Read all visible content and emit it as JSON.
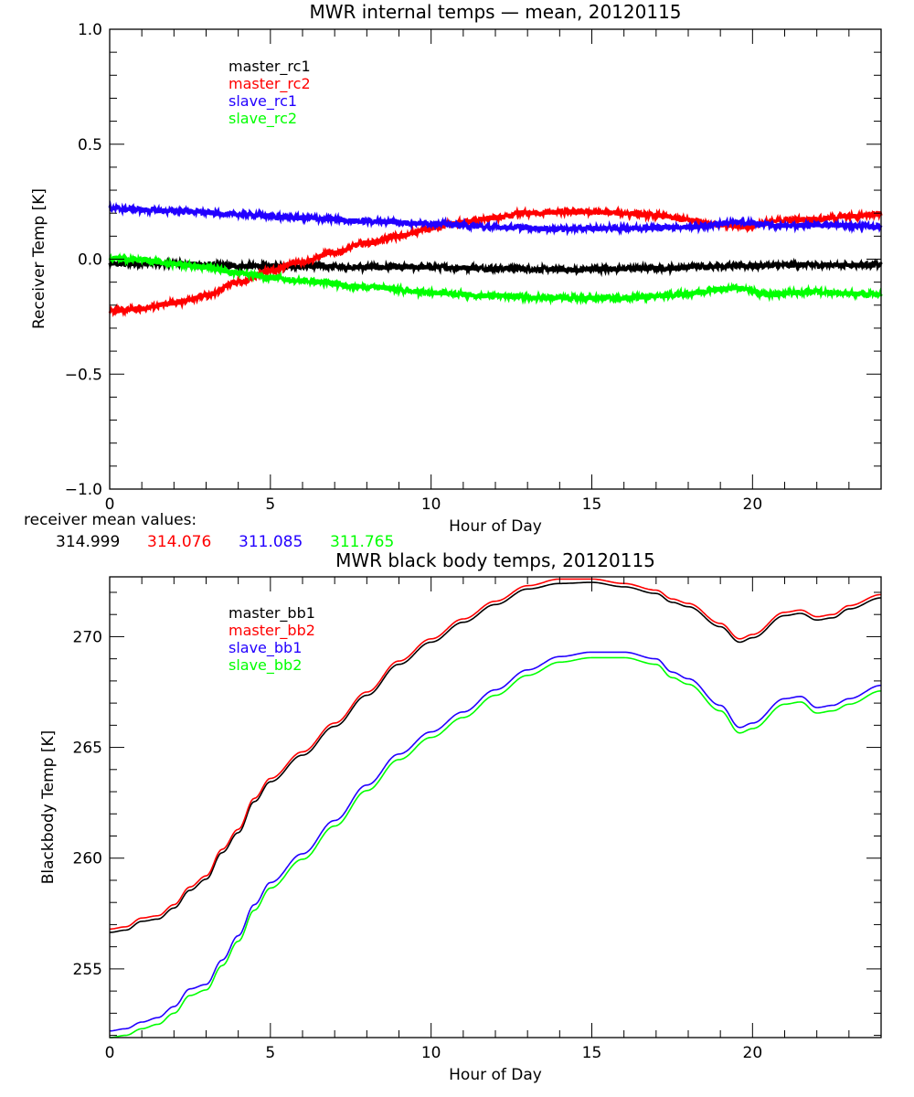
{
  "chart_data": [
    {
      "type": "line",
      "title": "MWR internal temps — mean, 20120115",
      "xlabel": "Hour of Day",
      "ylabel": "Receiver Temp [K]",
      "xlim": [
        0,
        24
      ],
      "ylim": [
        -1.0,
        1.0
      ],
      "xticks": [
        0,
        5,
        10,
        15,
        20
      ],
      "xtick_labels": [
        "0",
        "5",
        "10",
        "15",
        "20"
      ],
      "x_minor_step": 1,
      "yticks": [
        -1.0,
        -0.5,
        0.0,
        0.5,
        1.0
      ],
      "ytick_labels": [
        "−1.0",
        "−0.5",
        "0.0",
        "0.5",
        "1.0"
      ],
      "y_minor_step": 0.1,
      "grid": false,
      "legend_position": "top-left",
      "noisy": true,
      "series": [
        {
          "name": "master_rc1",
          "color": "#000000",
          "x": [
            0,
            2,
            4,
            6,
            8,
            10,
            12,
            14,
            14.5,
            15,
            17,
            19,
            20,
            22,
            24
          ],
          "y": [
            -0.02,
            -0.02,
            -0.03,
            -0.03,
            -0.035,
            -0.035,
            -0.04,
            -0.045,
            -0.048,
            -0.042,
            -0.04,
            -0.03,
            -0.028,
            -0.025,
            -0.025
          ]
        },
        {
          "name": "master_rc2",
          "color": "#ff0000",
          "x": [
            0,
            1,
            2,
            3,
            4,
            5,
            6,
            7,
            8,
            9,
            10,
            11,
            12,
            13,
            14,
            15,
            16,
            17,
            18,
            19,
            19.7,
            20.5,
            21,
            22,
            23,
            24
          ],
          "y": [
            -0.225,
            -0.215,
            -0.19,
            -0.16,
            -0.1,
            -0.05,
            -0.01,
            0.03,
            0.07,
            0.1,
            0.135,
            0.16,
            0.18,
            0.2,
            0.205,
            0.205,
            0.2,
            0.19,
            0.17,
            0.15,
            0.14,
            0.16,
            0.17,
            0.175,
            0.185,
            0.2
          ]
        },
        {
          "name": "slave_rc1",
          "color": "#2200ff",
          "x": [
            0,
            2,
            4,
            6,
            8,
            10,
            12,
            14,
            16,
            18,
            19.5,
            21,
            22,
            24
          ],
          "y": [
            0.22,
            0.21,
            0.195,
            0.18,
            0.165,
            0.155,
            0.14,
            0.132,
            0.135,
            0.14,
            0.16,
            0.145,
            0.15,
            0.142
          ]
        },
        {
          "name": "slave_rc2",
          "color": "#00ff00",
          "x": [
            0,
            1,
            2,
            3,
            4,
            5,
            6,
            8,
            10,
            12,
            14,
            16,
            17,
            18,
            19,
            19.5,
            20.5,
            21.5,
            22,
            23,
            24
          ],
          "y": [
            0.005,
            -0.005,
            -0.02,
            -0.035,
            -0.06,
            -0.08,
            -0.095,
            -0.12,
            -0.145,
            -0.16,
            -0.17,
            -0.17,
            -0.16,
            -0.15,
            -0.13,
            -0.125,
            -0.155,
            -0.145,
            -0.14,
            -0.15,
            -0.155
          ]
        }
      ]
    },
    {
      "type": "line",
      "title": "MWR black body temps, 20120115",
      "xlabel": "Hour of Day",
      "ylabel": "Blackbody Temp [K]",
      "xlim": [
        0,
        24
      ],
      "ylim": [
        251.9,
        272.7
      ],
      "xticks": [
        0,
        5,
        10,
        15,
        20
      ],
      "xtick_labels": [
        "0",
        "5",
        "10",
        "15",
        "20"
      ],
      "x_minor_step": 1,
      "yticks": [
        255,
        260,
        265,
        270
      ],
      "ytick_labels": [
        "255",
        "260",
        "265",
        "270"
      ],
      "y_minor_step": 1,
      "grid": false,
      "legend_position": "top-left",
      "noisy": false,
      "series": [
        {
          "name": "master_bb1",
          "color": "#000000",
          "x": [
            0,
            0.5,
            1,
            1.5,
            2,
            2.5,
            3,
            3.5,
            4,
            4.5,
            5,
            6,
            7,
            8,
            9,
            10,
            11,
            12,
            13,
            14,
            15,
            16,
            17,
            17.5,
            18,
            19,
            19.6,
            20,
            21,
            21.5,
            22,
            22.5,
            23,
            24
          ],
          "y": [
            256.65,
            256.75,
            257.15,
            257.25,
            257.75,
            258.55,
            259.05,
            260.25,
            261.15,
            262.55,
            263.45,
            264.65,
            265.95,
            267.35,
            268.75,
            269.75,
            270.65,
            271.45,
            272.15,
            272.4,
            272.45,
            272.25,
            271.95,
            271.55,
            271.35,
            270.45,
            269.75,
            269.95,
            270.95,
            271.05,
            270.75,
            270.85,
            271.25,
            271.75
          ]
        },
        {
          "name": "master_bb2",
          "color": "#ff0000",
          "x": [
            0,
            0.5,
            1,
            1.5,
            2,
            2.5,
            3,
            3.5,
            4,
            4.5,
            5,
            6,
            7,
            8,
            9,
            10,
            11,
            12,
            13,
            14,
            15,
            16,
            17,
            17.5,
            18,
            19,
            19.6,
            20,
            21,
            21.5,
            22,
            22.5,
            23,
            24
          ],
          "y": [
            256.8,
            256.9,
            257.3,
            257.4,
            257.9,
            258.7,
            259.2,
            260.4,
            261.3,
            262.7,
            263.6,
            264.8,
            266.1,
            267.5,
            268.9,
            269.9,
            270.8,
            271.6,
            272.3,
            272.6,
            272.6,
            272.4,
            272.1,
            271.7,
            271.5,
            270.6,
            269.9,
            270.1,
            271.1,
            271.2,
            270.9,
            271.0,
            271.4,
            271.9
          ]
        },
        {
          "name": "slave_bb1",
          "color": "#2200ff",
          "x": [
            0,
            0.5,
            1,
            1.5,
            2,
            2.5,
            3,
            3.5,
            4,
            4.5,
            5,
            6,
            7,
            8,
            9,
            10,
            11,
            12,
            13,
            14,
            15,
            16,
            17,
            17.5,
            18,
            19,
            19.6,
            20,
            21,
            21.5,
            22,
            22.5,
            23,
            24
          ],
          "y": [
            252.2,
            252.3,
            252.6,
            252.8,
            253.3,
            254.1,
            254.3,
            255.4,
            256.5,
            257.9,
            258.9,
            260.2,
            261.7,
            263.3,
            264.7,
            265.7,
            266.6,
            267.6,
            268.5,
            269.1,
            269.3,
            269.3,
            269.0,
            268.4,
            268.1,
            266.9,
            265.9,
            266.1,
            267.2,
            267.3,
            266.8,
            266.9,
            267.2,
            267.8
          ]
        },
        {
          "name": "slave_bb2",
          "color": "#00ff00",
          "x": [
            0,
            0.5,
            1,
            1.5,
            2,
            2.5,
            3,
            3.5,
            4,
            4.5,
            5,
            6,
            7,
            8,
            9,
            10,
            11,
            12,
            13,
            14,
            15,
            16,
            17,
            17.5,
            18,
            19,
            19.6,
            20,
            21,
            21.5,
            22,
            22.5,
            23,
            24
          ],
          "y": [
            251.9,
            252.0,
            252.3,
            252.5,
            253.0,
            253.8,
            254.05,
            255.15,
            256.25,
            257.65,
            258.65,
            259.95,
            261.45,
            263.05,
            264.45,
            265.45,
            266.35,
            267.35,
            268.25,
            268.85,
            269.05,
            269.05,
            268.75,
            268.15,
            267.85,
            266.65,
            265.65,
            265.85,
            266.95,
            267.05,
            266.55,
            266.65,
            266.95,
            267.55
          ]
        }
      ]
    }
  ],
  "receiver_mean": {
    "label": "receiver mean values:",
    "values": [
      {
        "text": "314.999",
        "color": "#000000"
      },
      {
        "text": "314.076",
        "color": "#ff0000"
      },
      {
        "text": "311.085",
        "color": "#2200ff"
      },
      {
        "text": "311.765",
        "color": "#00ff00"
      }
    ]
  }
}
